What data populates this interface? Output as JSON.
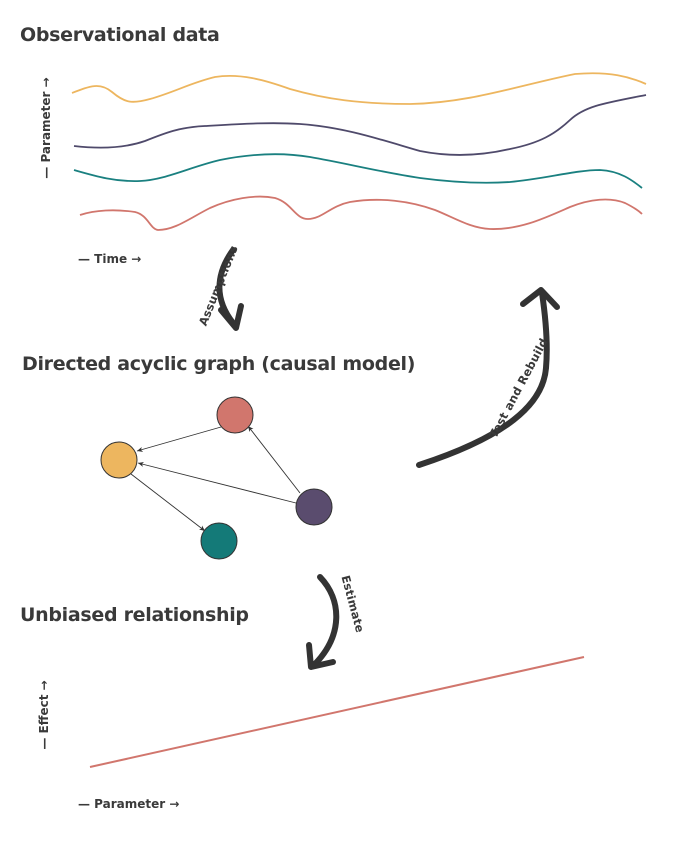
{
  "sections": {
    "observational": "Observational data",
    "dag": "Directed acyclic graph (causal model)",
    "relationship": "Unbiased relationship"
  },
  "axes": {
    "observational_y": "— Parameter →",
    "observational_x": "— Time →",
    "relationship_y": "— Effect →",
    "relationship_x": "— Parameter →"
  },
  "flow_arrows": {
    "assumptions": "Assumptions",
    "estimate": "Estimate",
    "test_and_rebuild": "Test and Rebuild"
  },
  "colors": {
    "yellow": "#edb65f",
    "purple": "#4f4a6b",
    "teal": "#1a8080",
    "red": "#d1766d",
    "text": "#3a3a3a",
    "arrow": "#333333"
  },
  "dag": {
    "nodes": [
      {
        "id": "red",
        "color": "#d1766d"
      },
      {
        "id": "yellow",
        "color": "#edb65f"
      },
      {
        "id": "purple",
        "color": "#5a4c6e"
      },
      {
        "id": "teal",
        "color": "#147a78"
      }
    ],
    "edges": [
      {
        "from": "red",
        "to": "yellow"
      },
      {
        "from": "yellow",
        "to": "teal"
      },
      {
        "from": "purple",
        "to": "red"
      },
      {
        "from": "purple",
        "to": "yellow"
      }
    ]
  }
}
